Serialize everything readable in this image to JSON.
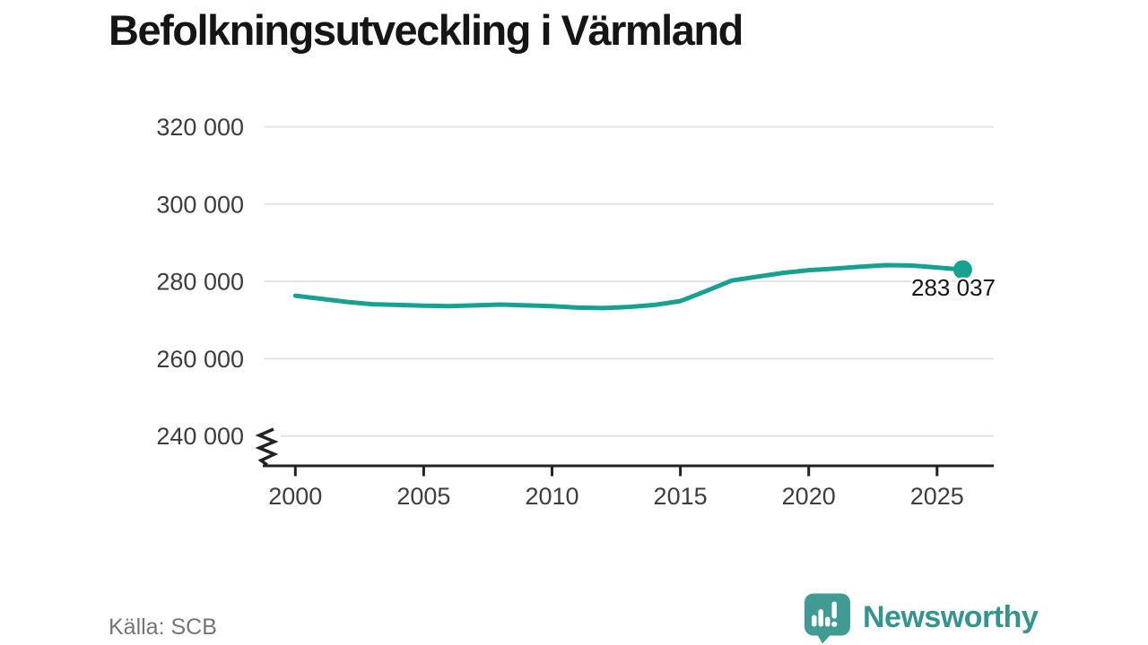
{
  "title": "Befolkningsutveckling i Värmland",
  "source": {
    "text": "Källa: SCB"
  },
  "logo": {
    "wordmark": "Newsworthy",
    "icon": "newsworthy-speech-bubble-bar-chart-icon"
  },
  "colors": {
    "line": "#16a191",
    "grid": "#e3e3e3",
    "axis": "#222222",
    "tick_text": "#3d3d3d",
    "title_text": "#151515",
    "source_text": "#757575",
    "logo_teal": "#3f9b94",
    "wordmark_teal": "#35958e",
    "background": "#ffffff"
  },
  "chart_data": {
    "type": "line",
    "title": "Befolkningsutveckling i Värmland",
    "xlabel": "",
    "ylabel": "",
    "x": [
      2000,
      2001,
      2002,
      2003,
      2004,
      2005,
      2006,
      2007,
      2008,
      2009,
      2010,
      2011,
      2012,
      2013,
      2014,
      2015,
      2016,
      2017,
      2018,
      2019,
      2020,
      2021,
      2022,
      2023,
      2024,
      2025,
      2026
    ],
    "values": [
      276300,
      275500,
      274700,
      274100,
      273900,
      273700,
      273600,
      273800,
      274000,
      273800,
      273600,
      273200,
      273100,
      273400,
      273900,
      274900,
      277500,
      280200,
      281200,
      282200,
      282900,
      283300,
      283800,
      284200,
      284100,
      283600,
      283037
    ],
    "end_value": 283037,
    "end_label": "283 037",
    "x_tick_labels": [
      "2000",
      "2005",
      "2010",
      "2015",
      "2020",
      "2025"
    ],
    "x_tick_values": [
      2000,
      2005,
      2010,
      2015,
      2020,
      2025
    ],
    "y_tick_labels": [
      "320 000",
      "300 000",
      "280 000",
      "260 000",
      "240 000"
    ],
    "y_tick_values": [
      320000,
      300000,
      280000,
      260000,
      240000
    ],
    "ylim": [
      232000,
      327000
    ],
    "xlim": [
      1998.7,
      2027.2
    ],
    "grid": "horizontal",
    "axis_break": true,
    "legend": "none",
    "line_color": "#16a191"
  }
}
